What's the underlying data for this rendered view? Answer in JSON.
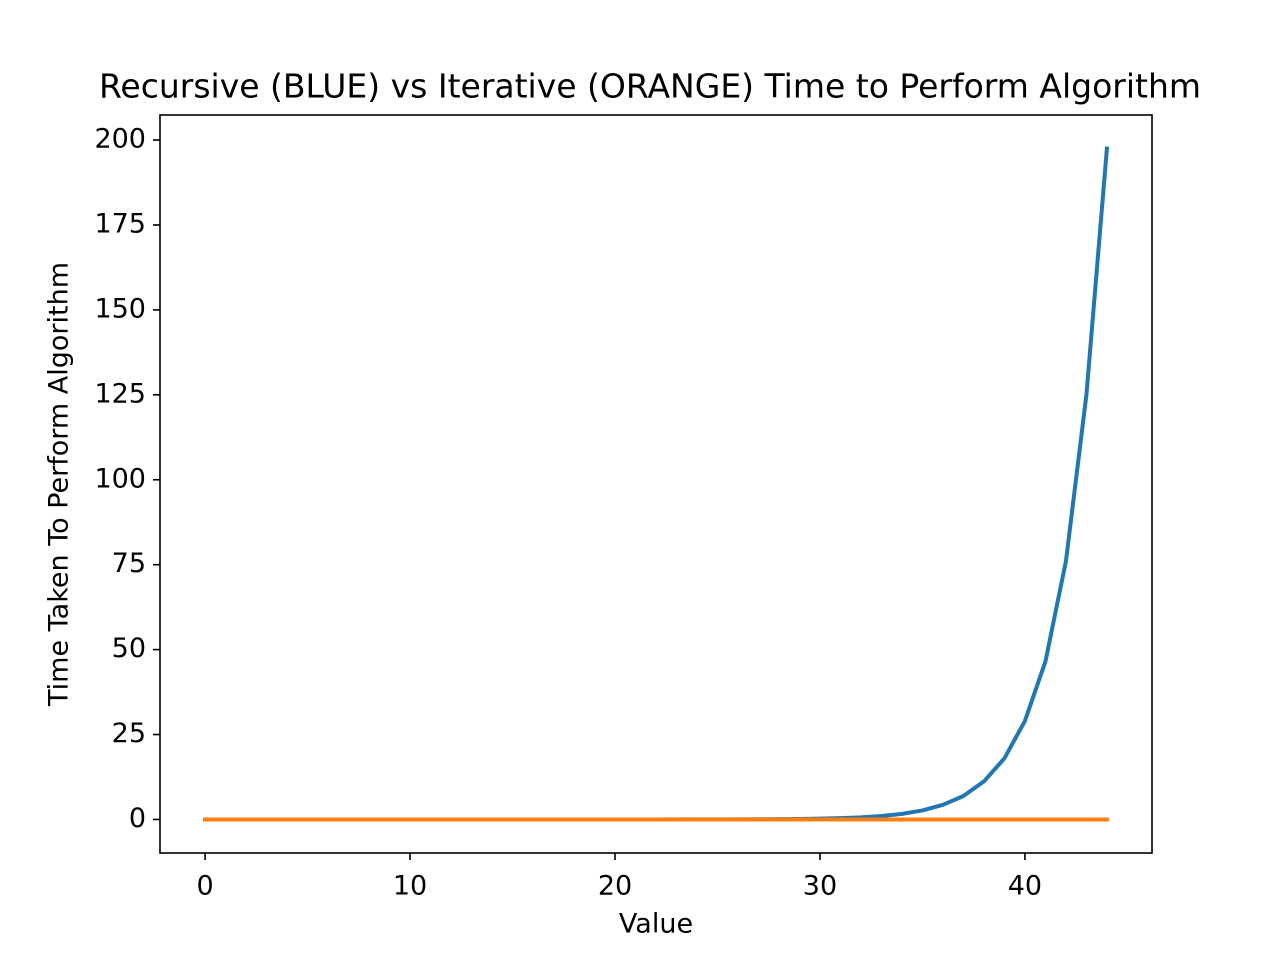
{
  "chart_data": {
    "type": "line",
    "title": "Recursive (BLUE) vs Iterative (ORANGE) Time to Perform Algorithm",
    "x_label": "Value",
    "y_label": "Time Taken To Perform Algorithm",
    "x": [
      0,
      1,
      2,
      3,
      4,
      5,
      6,
      7,
      8,
      9,
      10,
      11,
      12,
      13,
      14,
      15,
      16,
      17,
      18,
      19,
      20,
      21,
      22,
      23,
      24,
      25,
      26,
      27,
      28,
      29,
      30,
      31,
      32,
      33,
      34,
      35,
      36,
      37,
      38,
      39,
      40,
      41,
      42,
      43,
      44
    ],
    "series": [
      {
        "color": "#1f77b4",
        "values": [
          0,
          0,
          0,
          0,
          0,
          0,
          0,
          0,
          0,
          0,
          0,
          0,
          0,
          0,
          0,
          0,
          0,
          0,
          0,
          0.001,
          0.002,
          0.003,
          0.005,
          0.008,
          0.013,
          0.021,
          0.034,
          0.056,
          0.09,
          0.146,
          0.24,
          0.39,
          0.62,
          1.01,
          1.64,
          2.65,
          4.3,
          6.9,
          11.2,
          18,
          29,
          46.5,
          76,
          125,
          197.5
        ]
      },
      {
        "color": "#ff7f0e",
        "values": [
          0,
          0,
          0,
          0,
          0,
          0,
          0,
          0,
          0,
          0,
          0,
          0,
          0,
          0,
          0,
          0,
          0,
          0,
          0,
          0,
          0,
          0,
          0,
          0,
          0,
          0,
          0,
          0,
          0,
          0,
          0,
          0,
          0,
          0,
          0,
          0,
          0,
          0,
          0,
          0,
          0,
          0,
          0,
          0,
          0
        ]
      }
    ],
    "xlim": [
      -2.2,
      46.2
    ],
    "xticks": [
      0,
      10,
      20,
      30,
      40
    ],
    "ylim": [
      -9.875,
      207.375
    ],
    "yticks": [
      0,
      25,
      50,
      75,
      100,
      125,
      150,
      175,
      200
    ],
    "grid": false
  }
}
